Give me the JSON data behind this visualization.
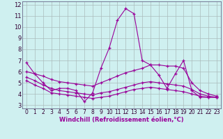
{
  "xlabel": "Windchill (Refroidissement éolien,°C)",
  "bg_color": "#cff0f0",
  "line_color": "#990099",
  "grid_color": "#aabbbb",
  "axis_color": "#666688",
  "xlim": [
    -0.5,
    23.5
  ],
  "ylim": [
    2.7,
    12.3
  ],
  "yticks": [
    3,
    4,
    5,
    6,
    7,
    8,
    9,
    10,
    11,
    12
  ],
  "xticks": [
    0,
    1,
    2,
    3,
    4,
    5,
    6,
    7,
    8,
    9,
    10,
    11,
    12,
    13,
    14,
    15,
    16,
    17,
    18,
    19,
    20,
    21,
    22,
    23
  ],
  "series": {
    "line1": {
      "x": [
        0,
        1,
        2,
        3,
        4,
        5,
        6,
        7,
        8,
        9,
        10,
        11,
        12,
        13,
        14,
        15,
        16,
        17,
        18,
        19,
        20,
        21,
        22,
        23
      ],
      "y": [
        6.8,
        5.8,
        5.0,
        4.3,
        4.5,
        4.5,
        4.3,
        3.3,
        4.1,
        6.3,
        8.1,
        10.6,
        11.65,
        11.2,
        7.0,
        6.6,
        5.7,
        4.5,
        5.8,
        7.0,
        4.3,
        3.7,
        3.7,
        3.7
      ]
    },
    "line2": {
      "x": [
        0,
        1,
        2,
        3,
        4,
        5,
        6,
        7,
        8,
        9,
        10,
        11,
        12,
        13,
        14,
        15,
        16,
        17,
        18,
        19,
        20,
        21,
        22,
        23
      ],
      "y": [
        6.0,
        5.8,
        5.6,
        5.3,
        5.1,
        5.0,
        4.9,
        4.8,
        4.7,
        5.0,
        5.3,
        5.6,
        5.9,
        6.1,
        6.3,
        6.6,
        6.6,
        6.5,
        6.5,
        6.3,
        5.0,
        4.3,
        4.0,
        3.8
      ]
    },
    "line3": {
      "x": [
        0,
        1,
        2,
        3,
        4,
        5,
        6,
        7,
        8,
        9,
        10,
        11,
        12,
        13,
        14,
        15,
        16,
        17,
        18,
        19,
        20,
        21,
        22,
        23
      ],
      "y": [
        5.5,
        5.2,
        4.8,
        4.5,
        4.3,
        4.2,
        4.1,
        4.0,
        3.9,
        4.1,
        4.2,
        4.4,
        4.6,
        4.8,
        5.0,
        5.1,
        5.0,
        4.9,
        4.8,
        4.7,
        4.4,
        4.0,
        3.8,
        3.7
      ]
    },
    "line4": {
      "x": [
        0,
        1,
        2,
        3,
        4,
        5,
        6,
        7,
        8,
        9,
        10,
        11,
        12,
        13,
        14,
        15,
        16,
        17,
        18,
        19,
        20,
        21,
        22,
        23
      ],
      "y": [
        5.2,
        4.8,
        4.5,
        4.1,
        4.0,
        3.9,
        3.8,
        3.7,
        3.6,
        3.7,
        3.8,
        4.0,
        4.2,
        4.4,
        4.5,
        4.6,
        4.5,
        4.4,
        4.3,
        4.2,
        4.0,
        3.8,
        3.7,
        3.7
      ]
    }
  }
}
